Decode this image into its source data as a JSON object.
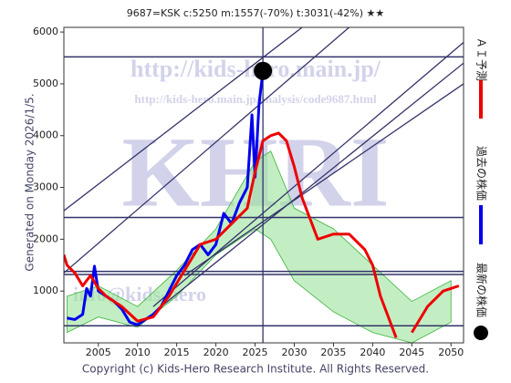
{
  "chart_data": {
    "type": "line",
    "title": "9687=KSK    c:5250  m:1557(-70%)  t:3031(-42%)  ★★",
    "side_label": "Generated on Monday 2026/1/5.",
    "footer": "Copyright (c) Kids-Hero Research Institute. All Rights Reserved.",
    "watermarks": [
      "http://kids-hero.main.jp/",
      "http://kids-hero.main.jp/analysis/code9687.html",
      "KHRI",
      "info@kids-hero"
    ],
    "xlim": [
      2000.6,
      2051.6
    ],
    "ylim": [
      0,
      6090
    ],
    "xticks": [
      2005,
      2010,
      2015,
      2020,
      2025,
      2030,
      2035,
      2040,
      2045,
      2050
    ],
    "yticks": [
      1000,
      2000,
      3000,
      4000,
      5000,
      6000
    ],
    "grid": false,
    "band": {
      "color": "#9be39b",
      "x": [
        2001,
        2005,
        2010,
        2015,
        2020,
        2025,
        2027,
        2030,
        2035,
        2040,
        2045,
        2050
      ],
      "upper": [
        900,
        1100,
        700,
        1400,
        2200,
        3500,
        3700,
        2600,
        2200,
        1500,
        800,
        1200
      ],
      "lower": [
        200,
        500,
        300,
        900,
        1700,
        2200,
        2000,
        1200,
        600,
        200,
        0,
        400
      ]
    },
    "hlines": [
      5520,
      2420,
      1380,
      1320,
      330
    ],
    "trend_lines": [
      [
        [
          2000.6,
          2550
        ],
        [
          2031,
          6090
        ]
      ],
      [
        [
          2000.6,
          1350
        ],
        [
          2037,
          6090
        ]
      ],
      [
        [
          2012,
          700
        ],
        [
          2051.6,
          5800
        ]
      ],
      [
        [
          2013,
          700
        ],
        [
          2051.6,
          5400
        ]
      ],
      [
        [
          2016,
          1300
        ],
        [
          2051.6,
          5000
        ]
      ]
    ],
    "series": [
      {
        "name": "過去の株価",
        "color": "#0000ee",
        "x": [
          2001,
          2002,
          2003,
          2003.5,
          2004,
          2004.5,
          2005,
          2006,
          2007,
          2008,
          2009,
          2010,
          2011,
          2012,
          2013,
          2014,
          2015,
          2016,
          2017,
          2018,
          2019,
          2020,
          2021,
          2022,
          2023,
          2024,
          2024.6,
          2025,
          2025.5,
          2026
        ],
        "values": [
          480,
          450,
          550,
          1050,
          900,
          1480,
          1000,
          900,
          800,
          650,
          400,
          350,
          450,
          550,
          700,
          1000,
          1300,
          1500,
          1800,
          1900,
          1700,
          1900,
          2500,
          2300,
          2700,
          3000,
          4400,
          3200,
          4600,
          5250
        ]
      },
      {
        "name": "ＡＩ予測",
        "color": "#ee0000",
        "x": [
          2000.6,
          2001,
          2002,
          2003,
          2004,
          2005,
          2006,
          2008,
          2010,
          2012,
          2014,
          2016,
          2018,
          2020,
          2022,
          2024,
          2025,
          2026,
          2027,
          2028,
          2029,
          2030,
          2031,
          2032,
          2033,
          2035,
          2037,
          2039,
          2040,
          2041,
          2042,
          2043,
          2044,
          2045,
          2047,
          2049,
          2051
        ],
        "values": [
          1700,
          1500,
          1350,
          1100,
          1300,
          1050,
          900,
          700,
          420,
          500,
          900,
          1400,
          1900,
          2000,
          2300,
          2600,
          3300,
          3900,
          4000,
          4050,
          3900,
          3400,
          2800,
          2400,
          2000,
          2100,
          2100,
          1800,
          1500,
          900,
          500,
          100,
          null,
          200,
          700,
          1000,
          1100
        ]
      }
    ],
    "latest": {
      "name": "最新の株価",
      "x": 2026,
      "y": 5250
    }
  }
}
